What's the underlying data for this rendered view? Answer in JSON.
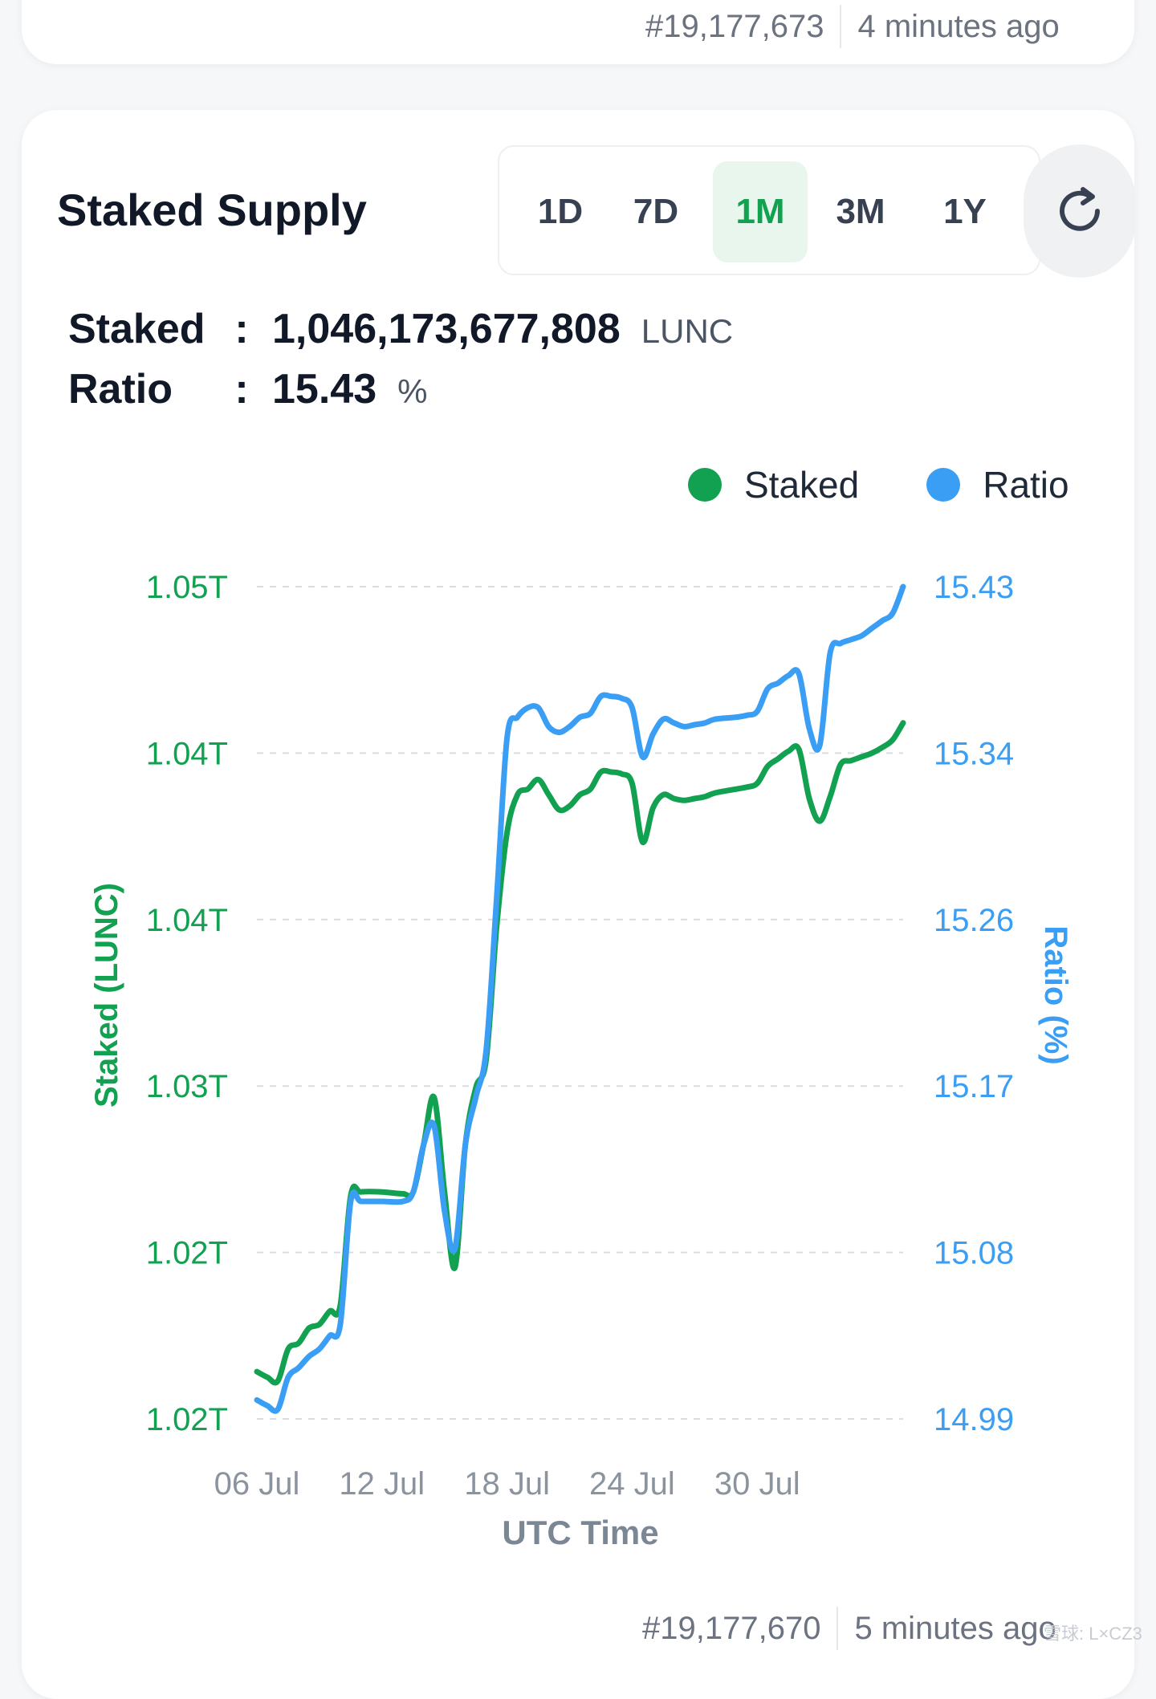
{
  "prev_entry": {
    "block": "#19,177,673",
    "time": "4 minutes ago"
  },
  "next_entry": {
    "block": "#19,177,670",
    "time": "5 minutes ago"
  },
  "card": {
    "title": "Staked Supply",
    "ranges": [
      "1D",
      "7D",
      "1M",
      "3M",
      "1Y"
    ],
    "active_range": "1M",
    "refresh_icon": "refresh-icon"
  },
  "stats": {
    "staked_label": "Staked",
    "staked_value": "1,046,173,677,808",
    "staked_unit": "LUNC",
    "ratio_label": "Ratio",
    "ratio_value": "15.43",
    "ratio_unit": "%",
    "separator": ":"
  },
  "colors": {
    "staked": "#12a150",
    "ratio": "#3b9ef5",
    "grid": "#d9dde3",
    "axis_text": "#7b8794"
  },
  "watermark": "雪球: L×CZ3",
  "chart_data": {
    "type": "line",
    "xlabel": "UTC Time",
    "ylabel_left": "Staked (LUNC)",
    "ylabel_right": "Ratio (%)",
    "x_ticks": [
      "06 Jul",
      "12 Jul",
      "18 Jul",
      "24 Jul",
      "30 Jul"
    ],
    "x_tick_days": [
      0,
      6,
      12,
      18,
      24
    ],
    "y_left_ticks": [
      "1.05T",
      "1.04T",
      "1.04T",
      "1.03T",
      "1.02T",
      "1.02T"
    ],
    "y_right_ticks": [
      "15.43",
      "15.34",
      "15.26",
      "15.17",
      "15.08",
      "14.99"
    ],
    "y_right_range": [
      14.99,
      15.43
    ],
    "grid": true,
    "legend_position": "top-right",
    "series": [
      {
        "name": "Staked",
        "axis": "left",
        "values_ratio_equiv": [
          [
            0,
            15.015
          ],
          [
            0.5,
            15.012
          ],
          [
            1.0,
            15.01
          ],
          [
            1.5,
            15.027
          ],
          [
            2.0,
            15.03
          ],
          [
            2.5,
            15.038
          ],
          [
            3.0,
            15.04
          ],
          [
            3.5,
            15.047
          ],
          [
            4.0,
            15.05
          ],
          [
            4.5,
            15.108
          ],
          [
            5.0,
            15.11
          ],
          [
            6.0,
            15.11
          ],
          [
            7.0,
            15.109
          ],
          [
            7.5,
            15.11
          ],
          [
            8.0,
            15.135
          ],
          [
            8.5,
            15.16
          ],
          [
            9.0,
            15.11
          ],
          [
            9.5,
            15.07
          ],
          [
            10.0,
            15.135
          ],
          [
            10.5,
            15.165
          ],
          [
            11.0,
            15.18
          ],
          [
            11.5,
            15.25
          ],
          [
            12.0,
            15.3
          ],
          [
            12.5,
            15.32
          ],
          [
            13.0,
            15.323
          ],
          [
            13.5,
            15.328
          ],
          [
            14.0,
            15.32
          ],
          [
            14.5,
            15.312
          ],
          [
            15.0,
            15.314
          ],
          [
            15.5,
            15.32
          ],
          [
            16.0,
            15.323
          ],
          [
            16.5,
            15.332
          ],
          [
            17.0,
            15.332
          ],
          [
            17.5,
            15.331
          ],
          [
            18.0,
            15.326
          ],
          [
            18.5,
            15.295
          ],
          [
            19.0,
            15.313
          ],
          [
            19.5,
            15.32
          ],
          [
            20.0,
            15.318
          ],
          [
            20.5,
            15.317
          ],
          [
            21.0,
            15.318
          ],
          [
            21.5,
            15.319
          ],
          [
            22.0,
            15.321
          ],
          [
            23.0,
            15.323
          ],
          [
            23.5,
            15.324
          ],
          [
            24.0,
            15.326
          ],
          [
            24.5,
            15.335
          ],
          [
            25.0,
            15.339
          ],
          [
            25.5,
            15.343
          ],
          [
            26.0,
            15.344
          ],
          [
            26.5,
            15.318
          ],
          [
            27.0,
            15.306
          ],
          [
            27.5,
            15.319
          ],
          [
            28.0,
            15.336
          ],
          [
            28.5,
            15.338
          ],
          [
            29.0,
            15.34
          ],
          [
            29.5,
            15.342
          ],
          [
            30.0,
            15.345
          ],
          [
            30.5,
            15.349
          ],
          [
            31.0,
            15.358
          ]
        ]
      },
      {
        "name": "Ratio",
        "axis": "right",
        "values": [
          [
            0,
            15.0
          ],
          [
            0.5,
            14.997
          ],
          [
            1.0,
            14.995
          ],
          [
            1.5,
            15.012
          ],
          [
            2.0,
            15.017
          ],
          [
            2.5,
            15.023
          ],
          [
            3.0,
            15.027
          ],
          [
            3.5,
            15.034
          ],
          [
            4.0,
            15.04
          ],
          [
            4.5,
            15.105
          ],
          [
            5.0,
            15.105
          ],
          [
            6.0,
            15.105
          ],
          [
            7.0,
            15.105
          ],
          [
            7.5,
            15.11
          ],
          [
            8.0,
            15.135
          ],
          [
            8.5,
            15.145
          ],
          [
            9.0,
            15.1
          ],
          [
            9.5,
            15.08
          ],
          [
            10.0,
            15.135
          ],
          [
            10.5,
            15.16
          ],
          [
            11.0,
            15.185
          ],
          [
            11.5,
            15.265
          ],
          [
            12.0,
            15.35
          ],
          [
            12.5,
            15.361
          ],
          [
            13.0,
            15.366
          ],
          [
            13.5,
            15.366
          ],
          [
            14.0,
            15.356
          ],
          [
            14.5,
            15.353
          ],
          [
            15.0,
            15.356
          ],
          [
            15.5,
            15.361
          ],
          [
            16.0,
            15.363
          ],
          [
            16.5,
            15.372
          ],
          [
            17.0,
            15.372
          ],
          [
            17.5,
            15.371
          ],
          [
            18.0,
            15.366
          ],
          [
            18.5,
            15.34
          ],
          [
            19.0,
            15.352
          ],
          [
            19.5,
            15.36
          ],
          [
            20.0,
            15.358
          ],
          [
            20.5,
            15.356
          ],
          [
            21.0,
            15.357
          ],
          [
            21.5,
            15.358
          ],
          [
            22.0,
            15.36
          ],
          [
            23.0,
            15.361
          ],
          [
            23.5,
            15.362
          ],
          [
            24.0,
            15.364
          ],
          [
            24.5,
            15.376
          ],
          [
            25.0,
            15.379
          ],
          [
            25.5,
            15.383
          ],
          [
            26.0,
            15.384
          ],
          [
            26.5,
            15.355
          ],
          [
            27.0,
            15.346
          ],
          [
            27.5,
            15.395
          ],
          [
            28.0,
            15.4
          ],
          [
            28.5,
            15.402
          ],
          [
            29.0,
            15.404
          ],
          [
            29.5,
            15.408
          ],
          [
            30.0,
            15.412
          ],
          [
            30.5,
            15.416
          ],
          [
            31.0,
            15.43
          ]
        ]
      }
    ]
  }
}
